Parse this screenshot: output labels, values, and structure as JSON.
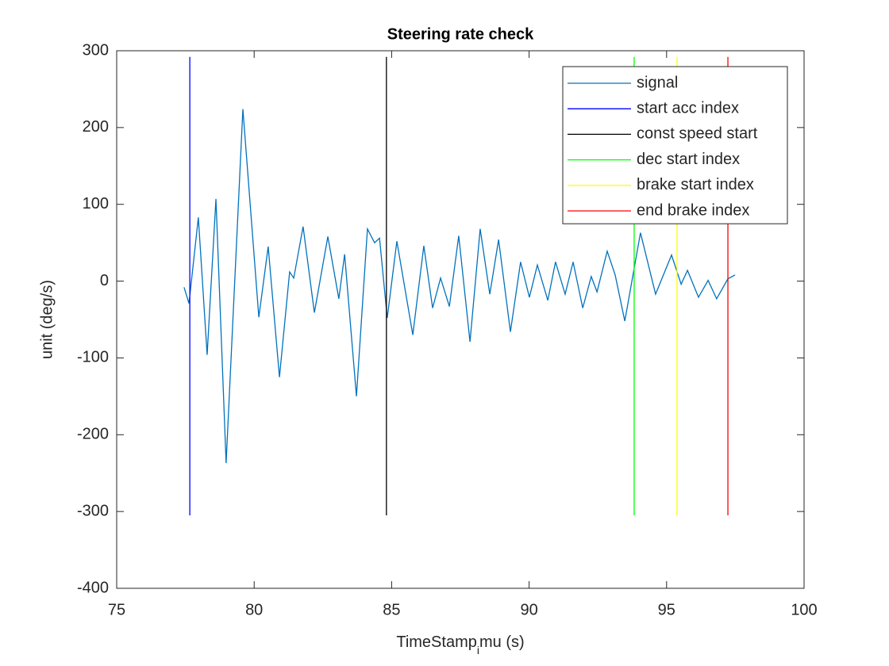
{
  "chart_data": {
    "type": "line",
    "title": "Steering rate check",
    "ylabel": "unit (deg/s)",
    "xlabel": [
      "TimeStamp",
      "i",
      "mu (s)"
    ],
    "xlim": [
      75,
      100
    ],
    "ylim": [
      -400,
      300
    ],
    "xticks": [
      75,
      80,
      85,
      90,
      95,
      100
    ],
    "yticks": [
      -400,
      -300,
      -200,
      -100,
      0,
      100,
      200,
      300
    ],
    "legend": "upper right",
    "series": [
      {
        "name": "signal",
        "color": "#0072bd",
        "x": [
          77.45,
          77.63,
          77.97,
          78.29,
          78.61,
          78.98,
          79.59,
          80.17,
          80.51,
          80.92,
          81.29,
          81.44,
          81.78,
          82.19,
          82.68,
          83.08,
          83.29,
          83.72,
          84.12,
          84.38,
          84.56,
          84.84,
          85.19,
          85.77,
          86.17,
          86.49,
          86.78,
          87.1,
          87.44,
          87.85,
          88.22,
          88.57,
          88.89,
          89.32,
          89.69,
          90.01,
          90.3,
          90.68,
          90.96,
          91.31,
          91.6,
          91.95,
          92.26,
          92.47,
          92.84,
          93.13,
          93.48,
          94.05,
          94.6,
          95.18,
          95.53,
          95.76,
          96.16,
          96.51,
          96.82,
          97.23,
          97.49
        ],
        "values": [
          -8,
          -29,
          83,
          -96,
          107,
          -237,
          224,
          -47,
          45,
          -125,
          12,
          4,
          71,
          -41,
          58,
          -23,
          35,
          -150,
          68,
          50,
          56,
          -48,
          52,
          -70,
          46,
          -35,
          4,
          -33,
          59,
          -79,
          68,
          -17,
          54,
          -66,
          25,
          -21,
          21,
          -25,
          25,
          -17,
          25,
          -35,
          6,
          -14,
          39,
          8,
          -52,
          63,
          -17,
          34,
          -4,
          14,
          -21,
          1,
          -23,
          3,
          8
        ]
      },
      {
        "name": "start acc index",
        "color": "#0000ff",
        "x": [
          77.66,
          77.66
        ],
        "values": [
          -305,
          292
        ]
      },
      {
        "name": "const speed start",
        "color": "#000000",
        "x": [
          84.81,
          84.81
        ],
        "values": [
          -305,
          292
        ]
      },
      {
        "name": "dec start index",
        "color": "#00ff00",
        "x": [
          93.82,
          93.82
        ],
        "values": [
          -305,
          292
        ]
      },
      {
        "name": "brake start index",
        "color": "#ffff00",
        "x": [
          95.38,
          95.38
        ],
        "values": [
          -305,
          292
        ]
      },
      {
        "name": "end brake index",
        "color": "#ff0000",
        "x": [
          97.23,
          97.23
        ],
        "values": [
          -305,
          292
        ]
      }
    ]
  }
}
